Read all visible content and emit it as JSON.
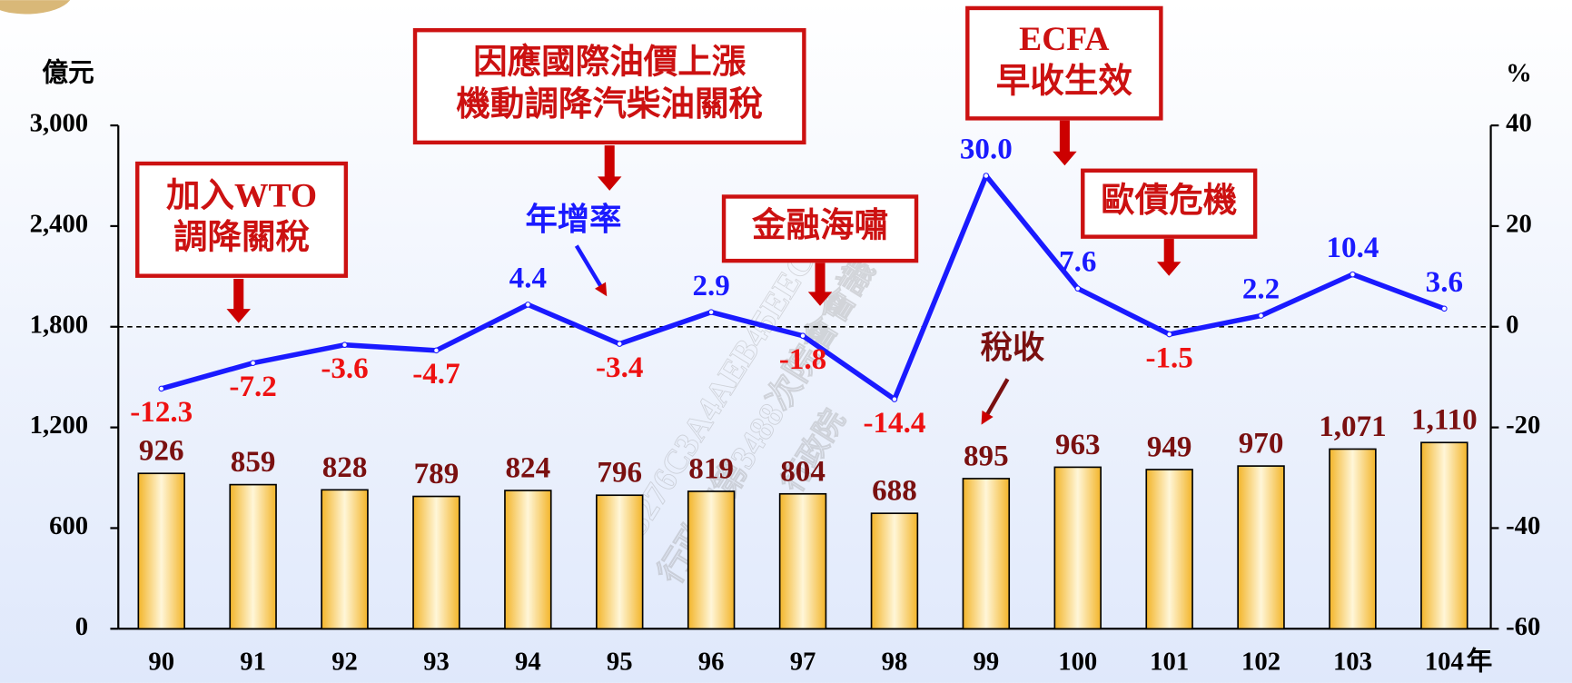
{
  "chart_data": {
    "type": "bar_line",
    "y_unit": "億元",
    "y2_unit": "%",
    "x_unit": "年",
    "categories": [
      "90",
      "91",
      "92",
      "93",
      "94",
      "95",
      "96",
      "97",
      "98",
      "99",
      "100",
      "101",
      "102",
      "103",
      "104"
    ],
    "ylim": [
      0,
      3000
    ],
    "yticks": [
      0,
      600,
      {
        "value": 1200,
        "label": "1,200"
      },
      {
        "value": 1800,
        "label": "1,800"
      },
      {
        "value": 2400,
        "label": "2,400"
      },
      {
        "value": 3000,
        "label": "3,000"
      }
    ],
    "y2lim": [
      -60,
      40
    ],
    "y2ticks": [
      -60,
      -40,
      -20,
      0,
      20,
      40
    ],
    "y2_reference": 0,
    "series": [
      {
        "name": "稅收",
        "type": "bar",
        "color": "#f5c040",
        "label_color": "#7a1010",
        "values": [
          926,
          859,
          828,
          789,
          824,
          796,
          819,
          804,
          688,
          895,
          963,
          949,
          970,
          1071,
          1110
        ],
        "value_labels": [
          "926",
          "859",
          "828",
          "789",
          "824",
          "796",
          "819",
          "804",
          "688",
          "895",
          "963",
          "949",
          "970",
          "1,071",
          "1,110"
        ]
      },
      {
        "name": "年增率",
        "type": "line",
        "axis": "y2",
        "color": "#1a1aff",
        "positive_label_color": "#1a1aff",
        "negative_label_color": "#ee1111",
        "values": [
          -12.3,
          -7.2,
          -3.6,
          -4.7,
          4.4,
          -3.4,
          2.9,
          -1.8,
          -14.4,
          30.0,
          7.6,
          -1.5,
          2.2,
          10.4,
          3.6
        ],
        "value_labels": [
          "-12.3",
          "-7.2",
          "-3.6",
          "-4.7",
          "4.4",
          "-3.4",
          "2.9",
          "-1.8",
          "-14.4",
          "30.0",
          "7.6",
          "-1.5",
          "2.2",
          "10.4",
          "3.6"
        ]
      }
    ],
    "annotations": [
      {
        "lines": [
          "加入WTO",
          "調降關稅"
        ]
      },
      {
        "lines": [
          "因應國際油價上漲",
          "機動調降汽柴油關稅"
        ]
      },
      {
        "lines": [
          "金融海嘯"
        ]
      },
      {
        "lines": [
          "ECFA",
          "早收生效"
        ]
      },
      {
        "lines": [
          "歐債危機"
        ]
      }
    ],
    "watermark": [
      "3276C3A4AEB45EEC",
      "行政院第3488次院會會議",
      "行政院"
    ]
  }
}
